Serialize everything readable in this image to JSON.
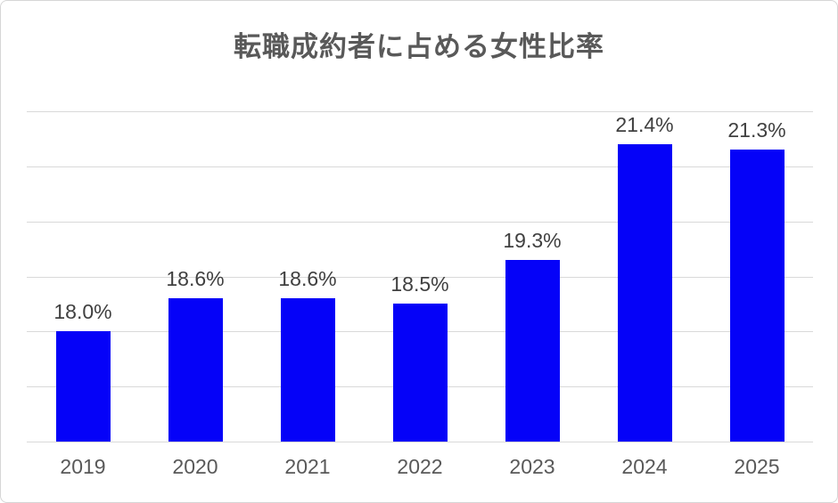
{
  "chart_data": {
    "type": "bar",
    "title": "転職成約者に占める女性比率",
    "categories": [
      "2019",
      "2020",
      "2021",
      "2022",
      "2023",
      "2024",
      "2025"
    ],
    "values": [
      18.0,
      18.6,
      18.6,
      18.5,
      19.3,
      21.4,
      21.3
    ],
    "value_labels": [
      "18.0%",
      "18.6%",
      "18.6%",
      "18.5%",
      "19.3%",
      "21.4%",
      "21.3%"
    ],
    "xlabel": "",
    "ylabel": "",
    "ylim": [
      16,
      22
    ],
    "gridline_step": 1,
    "grid": true,
    "legend": false,
    "y_axis_labels_visible": false,
    "colors": {
      "bar": "#0502f8",
      "gridline": "#d9d9d9",
      "title": "#595959",
      "value_label": "#404040",
      "tick_label": "#595959",
      "frame_border": "#d6d6d6",
      "background": "#ffffff"
    }
  }
}
